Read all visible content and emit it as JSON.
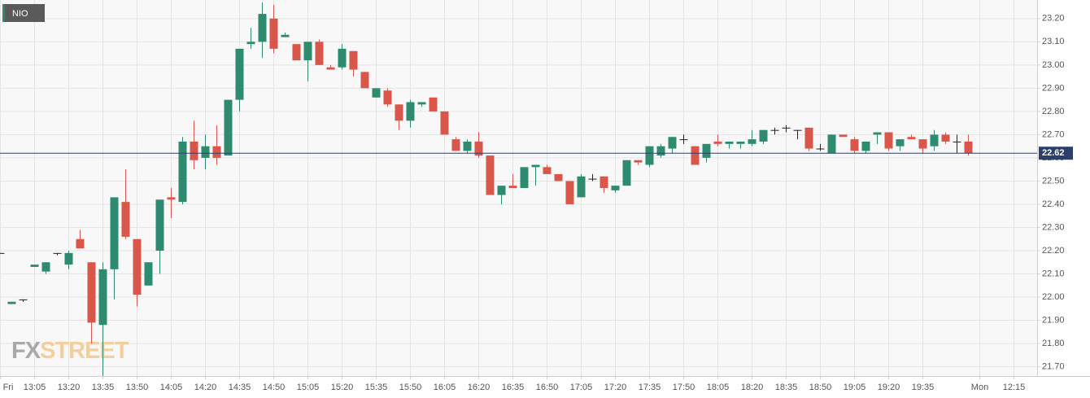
{
  "chart_data": {
    "type": "candlestick",
    "title": "NIO",
    "watermark": {
      "fx": "FX",
      "street": "STREET"
    },
    "categories": [
      "Fri",
      null,
      null,
      "13:05",
      null,
      null,
      "13:20",
      null,
      null,
      "13:35",
      null,
      null,
      "13:50",
      null,
      null,
      "14:05",
      null,
      null,
      "14:20",
      null,
      null,
      "14:35",
      null,
      null,
      "14:50",
      null,
      null,
      "15:05",
      null,
      null,
      "15:20",
      null,
      null,
      "15:35",
      null,
      null,
      "15:50",
      null,
      null,
      "16:05",
      null,
      null,
      "16:20",
      null,
      null,
      "16:35",
      null,
      null,
      "16:50",
      null,
      null,
      "17:05",
      null,
      null,
      "17:20",
      null,
      null,
      "17:35",
      null,
      null,
      "17:50",
      null,
      null,
      "18:05",
      null,
      null,
      "18:20",
      null,
      null,
      "18:35",
      null,
      null,
      "18:50",
      null,
      null,
      "19:05",
      null,
      null,
      "19:20",
      null,
      null,
      "19:35",
      null,
      null,
      null,
      null,
      "Mon",
      null,
      null,
      "12:15"
    ],
    "open": [
      22.19,
      21.97,
      21.99,
      22.13,
      22.11,
      22.19,
      22.14,
      22.25,
      22.15,
      21.88,
      22.12,
      22.41,
      22.25,
      22.05,
      22.2,
      22.43,
      22.41,
      22.67,
      22.6,
      22.65,
      22.61,
      22.85,
      23.09,
      23.1,
      23.2,
      23.12,
      23.09,
      23.02,
      23.1,
      22.99,
      22.99,
      23.06,
      22.97,
      22.86,
      22.89,
      22.83,
      22.76,
      22.83,
      22.86,
      22.8,
      22.68,
      22.63,
      22.67,
      22.61,
      22.44,
      22.48,
      22.47,
      22.56,
      22.56,
      22.53,
      22.5,
      22.43,
      22.51,
      22.52,
      22.46,
      22.48,
      22.59,
      22.57,
      22.61,
      22.64,
      22.68,
      22.65,
      22.6,
      22.67,
      22.66,
      22.66,
      22.66,
      22.67,
      22.72,
      22.73,
      22.72,
      22.73,
      22.64,
      22.62,
      22.7,
      22.68,
      22.63,
      22.7,
      22.71,
      22.65,
      22.69,
      22.68,
      22.65,
      22.7,
      22.67,
      22.67,
      null,
      null,
      null,
      null
    ],
    "high": [
      22.19,
      21.98,
      21.99,
      22.14,
      22.15,
      22.19,
      22.2,
      22.29,
      22.15,
      22.15,
      22.43,
      22.55,
      22.25,
      22.15,
      22.42,
      22.47,
      22.69,
      22.76,
      22.7,
      22.74,
      22.85,
      23.07,
      23.16,
      23.27,
      23.26,
      23.14,
      23.09,
      23.1,
      23.11,
      23.0,
      23.09,
      23.06,
      22.97,
      22.9,
      22.9,
      22.83,
      22.85,
      22.84,
      22.86,
      22.8,
      22.69,
      22.68,
      22.71,
      22.61,
      22.48,
      22.53,
      22.56,
      22.57,
      22.57,
      22.53,
      22.5,
      22.53,
      22.53,
      22.52,
      22.48,
      22.59,
      22.59,
      22.65,
      22.66,
      22.69,
      22.7,
      22.65,
      22.66,
      22.7,
      22.67,
      22.67,
      22.72,
      22.72,
      22.73,
      22.74,
      22.72,
      22.73,
      22.66,
      22.7,
      22.7,
      22.69,
      22.67,
      22.71,
      22.71,
      22.68,
      22.7,
      22.68,
      22.72,
      22.71,
      22.7,
      22.7,
      null,
      null,
      null,
      null
    ],
    "low": [
      22.19,
      21.97,
      21.98,
      22.13,
      22.1,
      22.18,
      22.12,
      22.21,
      21.8,
      21.66,
      21.99,
      22.25,
      21.96,
      22.05,
      22.1,
      22.34,
      22.4,
      22.55,
      22.55,
      22.57,
      22.61,
      22.8,
      23.07,
      23.03,
      23.05,
      23.12,
      23.02,
      22.93,
      23.0,
      22.98,
      22.98,
      22.95,
      22.9,
      22.86,
      22.82,
      22.72,
      22.73,
      22.82,
      22.8,
      22.7,
      22.63,
      22.62,
      22.6,
      22.44,
      22.4,
      22.47,
      22.47,
      22.48,
      22.53,
      22.5,
      22.4,
      22.43,
      22.5,
      22.45,
      22.45,
      22.48,
      22.57,
      22.56,
      22.6,
      22.62,
      22.66,
      22.57,
      22.58,
      22.65,
      22.64,
      22.64,
      22.65,
      22.66,
      22.7,
      22.71,
      22.68,
      22.63,
      22.63,
      22.62,
      22.69,
      22.62,
      22.62,
      22.66,
      22.63,
      22.63,
      22.68,
      22.62,
      22.63,
      22.66,
      22.62,
      22.61,
      null,
      null,
      null,
      null
    ],
    "close": [
      22.19,
      21.98,
      21.99,
      22.14,
      22.15,
      22.19,
      22.19,
      22.21,
      21.89,
      22.12,
      22.43,
      22.26,
      22.01,
      22.15,
      22.42,
      22.42,
      22.67,
      22.59,
      22.65,
      22.6,
      22.85,
      23.07,
      23.1,
      23.22,
      23.07,
      23.13,
      23.02,
      23.1,
      23.0,
      22.98,
      23.07,
      22.98,
      22.9,
      22.9,
      22.83,
      22.76,
      22.84,
      22.84,
      22.8,
      22.7,
      22.63,
      22.67,
      22.61,
      22.44,
      22.48,
      22.47,
      22.56,
      22.57,
      22.53,
      22.5,
      22.4,
      22.52,
      22.51,
      22.47,
      22.48,
      22.59,
      22.58,
      22.65,
      22.65,
      22.69,
      22.68,
      22.57,
      22.66,
      22.66,
      22.67,
      22.67,
      22.68,
      22.72,
      22.72,
      22.73,
      22.72,
      22.64,
      22.64,
      22.7,
      22.69,
      22.63,
      22.67,
      22.71,
      22.64,
      22.68,
      22.68,
      22.64,
      22.7,
      22.67,
      22.67,
      22.62,
      null,
      null,
      null,
      null
    ],
    "up_color": "#2e8b6f",
    "down_color": "#d9574a",
    "doji_color": "#222222",
    "last_price": {
      "value": 22.62,
      "label": "22.62"
    },
    "last_price_color": "#2b3f6c",
    "ylim": [
      21.66,
      23.28
    ],
    "yticks": [
      {
        "value": 21.7,
        "label": "21.70"
      },
      {
        "value": 21.8,
        "label": "21.80"
      },
      {
        "value": 21.9,
        "label": "21.90"
      },
      {
        "value": 22.0,
        "label": "22.00"
      },
      {
        "value": 22.1,
        "label": "22.10"
      },
      {
        "value": 22.2,
        "label": "22.20"
      },
      {
        "value": 22.3,
        "label": "22.30"
      },
      {
        "value": 22.4,
        "label": "22.40"
      },
      {
        "value": 22.5,
        "label": "22.50"
      },
      {
        "value": 22.6,
        "label": "22.60"
      },
      {
        "value": 22.7,
        "label": "22.70"
      },
      {
        "value": 22.8,
        "label": "22.80"
      },
      {
        "value": 22.9,
        "label": "22.90"
      },
      {
        "value": 23.0,
        "label": "23.00"
      },
      {
        "value": 23.1,
        "label": "23.10"
      },
      {
        "value": 23.2,
        "label": "23.20"
      }
    ],
    "grid": true
  }
}
